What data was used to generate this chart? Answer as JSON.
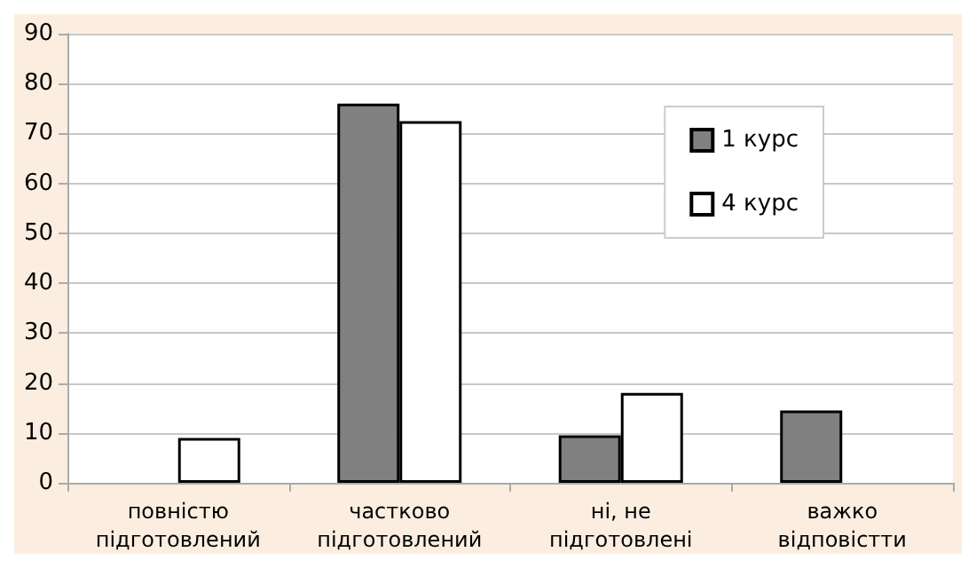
{
  "chart_data": {
    "type": "bar",
    "categories": [
      "повністю підготовлений",
      "частково підготовлений",
      "ні, не підготовлені",
      "важко відповістти"
    ],
    "series": [
      {
        "name": "1 курс",
        "color": "#808080",
        "values": [
          null,
          76,
          9.5,
          14.5
        ]
      },
      {
        "name": "4 курс",
        "color": "#ffffff",
        "values": [
          9,
          72.5,
          18,
          null
        ]
      }
    ],
    "ylim": [
      0,
      90
    ],
    "yticks": [
      0,
      10,
      20,
      30,
      40,
      50,
      60,
      70,
      80,
      90
    ],
    "grid": "y",
    "legend": "top right"
  }
}
